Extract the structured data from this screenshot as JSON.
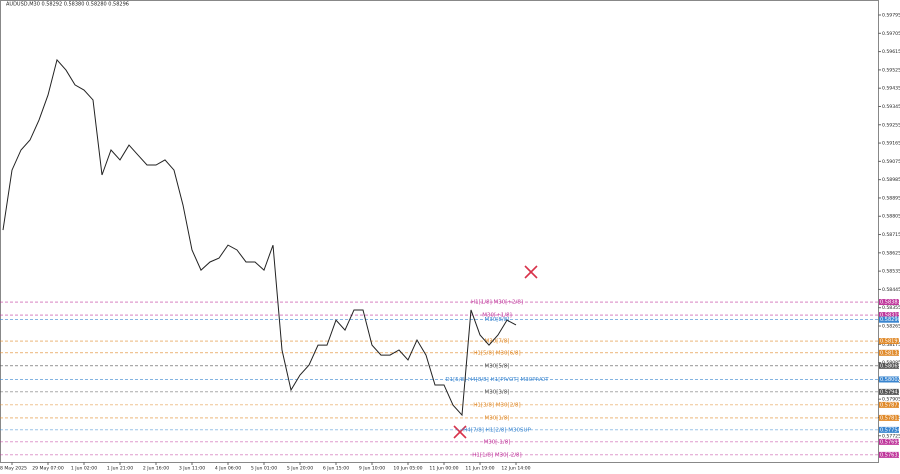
{
  "chart_data": {
    "type": "line",
    "title": "AUDUSD,M30 0.58292 0.58380 0.58280 0.58296",
    "color": "#222222",
    "categories": [
      null,
      "28 May 2025",
      null,
      null,
      null,
      "29 May 07:00",
      null,
      null,
      null,
      "1 Jun 02:00",
      null,
      null,
      null,
      "1 Jun 21:00",
      null,
      null,
      null,
      "2 Jun 16:00",
      null,
      null,
      null,
      "3 Jun 11:00",
      null,
      null,
      null,
      "4 Jun 06:00",
      null,
      null,
      null,
      "5 Jun 01:00",
      null,
      null,
      null,
      "5 Jun 20:00",
      null,
      null,
      null,
      "6 Jun 15:00",
      null,
      null,
      null,
      "9 Jun 10:00",
      null,
      null,
      null,
      "10 Jun 05:00",
      null,
      null,
      null,
      "11 Jun 00:00",
      null,
      null,
      null,
      "11 Jun 19:00",
      null,
      null,
      null,
      "12 Jun 14:00"
    ],
    "values": [
      0.58737,
      0.59032,
      0.59131,
      0.5918,
      0.59278,
      0.59401,
      0.59574,
      0.59524,
      0.59451,
      0.59426,
      0.59377,
      0.59008,
      0.59131,
      0.59082,
      0.59155,
      0.59106,
      0.59057,
      0.59057,
      0.59082,
      0.59032,
      0.5886,
      0.58639,
      0.5854,
      0.5858,
      0.58599,
      0.58663,
      0.58639,
      0.5858,
      0.5858,
      0.5854,
      0.58663,
      0.58147,
      0.5795,
      0.58024,
      0.58073,
      0.58171,
      0.58171,
      0.58294,
      0.58245,
      0.58344,
      0.58344,
      0.58171,
      0.58122,
      0.58122,
      0.58147,
      0.58098,
      0.58196,
      0.58122,
      0.57975,
      0.57975,
      0.57876,
      0.57827,
      0.58344,
      0.58221,
      0.58171,
      0.58221,
      0.58294,
      0.5827
    ],
    "ylim": [
      0.57596,
      0.59859
    ],
    "yticks": [
      0.59795,
      0.59705,
      0.59615,
      0.59525,
      0.59435,
      0.59345,
      0.59255,
      0.59165,
      0.59075,
      0.58985,
      0.58895,
      0.58805,
      0.58715,
      0.58625,
      0.58535,
      0.58445,
      0.58355,
      0.58265,
      0.58175,
      0.58085,
      0.57995,
      0.57905,
      0.57815,
      0.57725
    ],
    "levels": [
      {
        "label": "H1[1/8] M30[+2/8]",
        "value": 0.58383,
        "color": "#c0389c"
      },
      {
        "label": "M30[+1/8]",
        "value": 0.58319,
        "color": "#c0389c"
      },
      {
        "label": "M30[8/8]",
        "value": 0.58296,
        "color": "#3a86d0"
      },
      {
        "label": "M30[7/8]",
        "value": 0.58191,
        "color": "#e08a2a"
      },
      {
        "label": "H1[5/8] M30[6/8]",
        "value": 0.58133,
        "color": "#e08a2a"
      },
      {
        "label": "M30[5/8]",
        "value": 0.58069,
        "color": "#555555"
      },
      {
        "label": "D1[5/8] H4[8/8] H1[PIVOT] M30PIVOT",
        "value": 0.58002,
        "color": "#3a86d0"
      },
      {
        "label": "M30[3/8]",
        "value": 0.57941,
        "color": "#555555"
      },
      {
        "label": "H1[3/8] M30[2/8]",
        "value": 0.57877,
        "color": "#e08a2a"
      },
      {
        "label": "M30[1/8]",
        "value": 0.57813,
        "color": "#e08a2a"
      },
      {
        "label": "H4[7/8] H1[2/8] M30SUP",
        "value": 0.57754,
        "color": "#3a86d0"
      },
      {
        "label": "M30[-1/8]",
        "value": 0.57695,
        "color": "#c0389c"
      },
      {
        "label": "H1[1/8] M30[-2/8]",
        "value": 0.57631,
        "color": "#c0389c"
      }
    ]
  }
}
